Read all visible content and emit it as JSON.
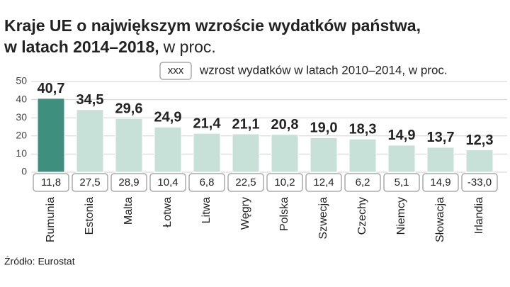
{
  "chart_data": {
    "type": "bar",
    "title": [
      "Kraje UE o największym wzroście wydatków państwa,",
      "w latach 2014–2018,"
    ],
    "unit": "w proc.",
    "legend": {
      "sample": "xxx",
      "text": "wzrost wydatków w latach 2010–2014, w proc."
    },
    "source": "Źródło: Eurostat",
    "categories": [
      "Rumunia",
      "Estonia",
      "Malta",
      "Łotwa",
      "Litwa",
      "Węgry",
      "Polska",
      "Szwecja",
      "Czechy",
      "Niemcy",
      "Słowacja",
      "Irlandia"
    ],
    "values": [
      40.7,
      34.5,
      29.6,
      24.9,
      21.4,
      21.1,
      20.8,
      19.0,
      18.3,
      14.9,
      13.7,
      12.3
    ],
    "value_labels": [
      "40,7",
      "34,5",
      "29,6",
      "24,9",
      "21,4",
      "21,1",
      "20,8",
      "19,0",
      "18,3",
      "14,9",
      "13,7",
      "12,3"
    ],
    "colors": [
      "#3e8f7d",
      "#c7e1d8",
      "#c7e1d8",
      "#c7e1d8",
      "#c7e1d8",
      "#c7e1d8",
      "#c7e1d8",
      "#c7e1d8",
      "#c7e1d8",
      "#c7e1d8",
      "#c7e1d8",
      "#c7e1d8"
    ],
    "growth_2010_2014": [
      11.8,
      27.5,
      28.9,
      10.4,
      6.8,
      22.5,
      10.2,
      12.4,
      6.2,
      5.1,
      14.9,
      -33.0
    ],
    "growth_2010_2014_labels": [
      "11,8",
      "27,5",
      "28,9",
      "10,4",
      "6,8",
      "22,5",
      "10,2",
      "12,4",
      "6,2",
      "5,1",
      "14,9",
      "-33,0"
    ],
    "ylim": [
      0,
      50
    ],
    "yticks": [
      0,
      10,
      20,
      30,
      40,
      50
    ],
    "grid": true
  }
}
